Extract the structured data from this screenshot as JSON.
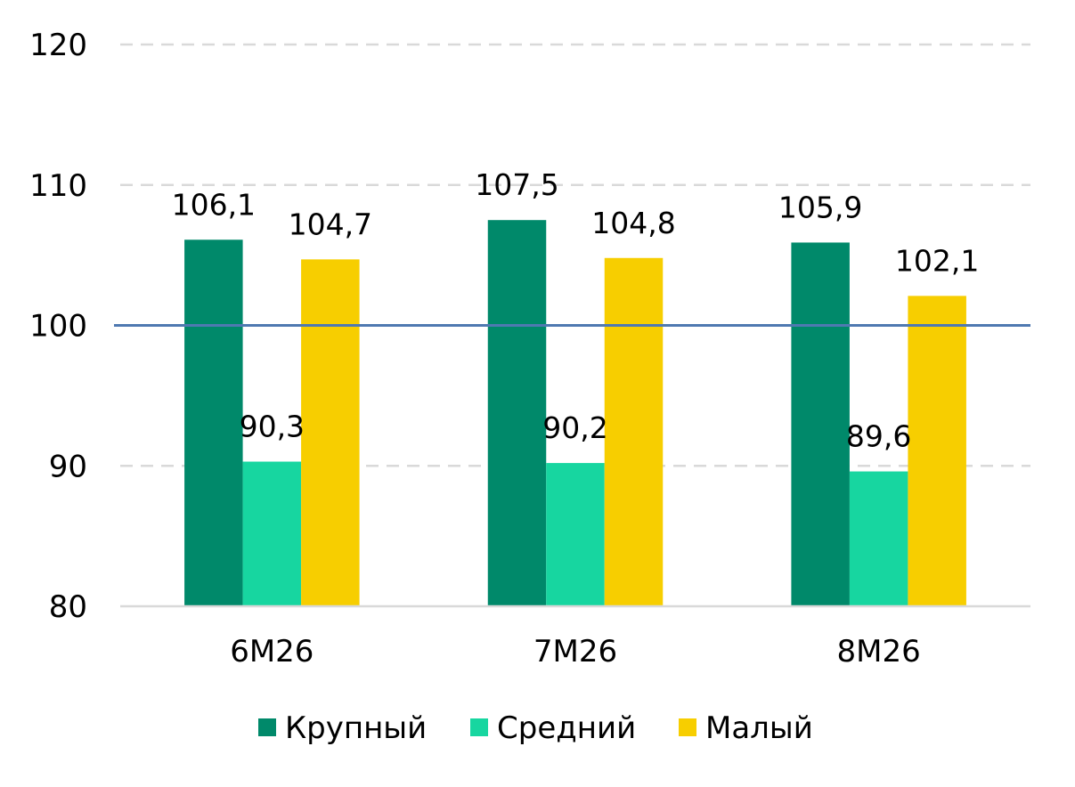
{
  "chart_data": {
    "type": "bar",
    "title": "",
    "xlabel": "",
    "ylabel": "",
    "categories": [
      "6М26",
      "7М26",
      "8М26"
    ],
    "series": [
      {
        "name": "Крупный",
        "values": [
          106.1,
          107.5,
          105.9
        ],
        "labels": [
          "106,1",
          "107,5",
          "105,9"
        ],
        "color": "#00896A"
      },
      {
        "name": "Средний",
        "values": [
          90.3,
          90.2,
          89.6
        ],
        "labels": [
          "90,3",
          "90,2",
          "89,6"
        ],
        "color": "#17D6A0"
      },
      {
        "name": "Малый",
        "values": [
          104.7,
          104.8,
          102.1
        ],
        "labels": [
          "104,7",
          "104,8",
          "102,1"
        ],
        "color": "#F7CE00"
      }
    ],
    "ylim": [
      80,
      120
    ],
    "yticks": [
      80,
      90,
      100,
      110,
      120
    ],
    "ytick_labels": [
      "80",
      "90",
      "100",
      "110",
      "120"
    ],
    "reference_line": {
      "value": 100,
      "color": "#4F79B1"
    },
    "grid": true,
    "legend_position": "bottom"
  }
}
